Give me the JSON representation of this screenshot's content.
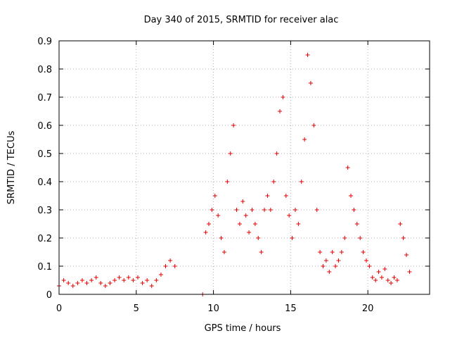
{
  "chart_data": {
    "type": "scatter",
    "title": "Day 340 of 2015, SRMTID for receiver alac",
    "xlabel": "GPS time / hours",
    "ylabel": "SRMTID / TECUs",
    "xlim": [
      0,
      24
    ],
    "ylim": [
      0,
      0.9
    ],
    "xticks": [
      "0",
      "5",
      "10",
      "15",
      "20"
    ],
    "yticks": [
      "0",
      "0.1",
      "0.2",
      "0.3",
      "0.4",
      "0.5",
      "0.6",
      "0.7",
      "0.8",
      "0.9"
    ],
    "grid": true,
    "marker": "+",
    "color": "#e00000",
    "series": [
      {
        "name": "SRMTID",
        "x": [
          0.0,
          0.3,
          0.6,
          0.9,
          1.2,
          1.5,
          1.8,
          2.1,
          2.4,
          2.7,
          3.0,
          3.3,
          3.6,
          3.9,
          4.2,
          4.5,
          4.8,
          5.1,
          5.4,
          5.7,
          6.0,
          6.3,
          6.6,
          6.9,
          7.2,
          7.5,
          9.3,
          9.5,
          9.7,
          9.9,
          10.1,
          10.3,
          10.5,
          10.7,
          10.9,
          11.1,
          11.3,
          11.5,
          11.7,
          11.9,
          12.1,
          12.3,
          12.5,
          12.7,
          12.9,
          13.1,
          13.3,
          13.5,
          13.7,
          13.9,
          14.1,
          14.3,
          14.5,
          14.7,
          14.9,
          15.1,
          15.3,
          15.5,
          15.7,
          15.9,
          16.1,
          16.3,
          16.5,
          16.7,
          16.9,
          17.1,
          17.3,
          17.5,
          17.7,
          17.9,
          18.1,
          18.3,
          18.5,
          18.7,
          18.9,
          19.1,
          19.3,
          19.5,
          19.7,
          19.9,
          20.1,
          20.3,
          20.5,
          20.7,
          20.9,
          21.1,
          21.3,
          21.5,
          21.7,
          21.9,
          22.1,
          22.3,
          22.5,
          22.7
        ],
        "y": [
          0.03,
          0.05,
          0.04,
          0.03,
          0.04,
          0.05,
          0.04,
          0.05,
          0.06,
          0.04,
          0.03,
          0.04,
          0.05,
          0.06,
          0.05,
          0.06,
          0.05,
          0.06,
          0.04,
          0.05,
          0.03,
          0.05,
          0.07,
          0.1,
          0.12,
          0.1,
          0.0,
          0.22,
          0.25,
          0.3,
          0.35,
          0.28,
          0.2,
          0.15,
          0.4,
          0.5,
          0.6,
          0.3,
          0.25,
          0.33,
          0.28,
          0.22,
          0.3,
          0.25,
          0.2,
          0.15,
          0.3,
          0.35,
          0.3,
          0.4,
          0.5,
          0.65,
          0.7,
          0.35,
          0.28,
          0.2,
          0.3,
          0.25,
          0.4,
          0.55,
          0.85,
          0.75,
          0.6,
          0.3,
          0.15,
          0.1,
          0.12,
          0.08,
          0.15,
          0.1,
          0.12,
          0.15,
          0.2,
          0.45,
          0.35,
          0.3,
          0.25,
          0.2,
          0.15,
          0.12,
          0.1,
          0.06,
          0.05,
          0.08,
          0.06,
          0.09,
          0.05,
          0.04,
          0.06,
          0.05,
          0.25,
          0.2,
          0.14,
          0.08
        ]
      }
    ]
  }
}
